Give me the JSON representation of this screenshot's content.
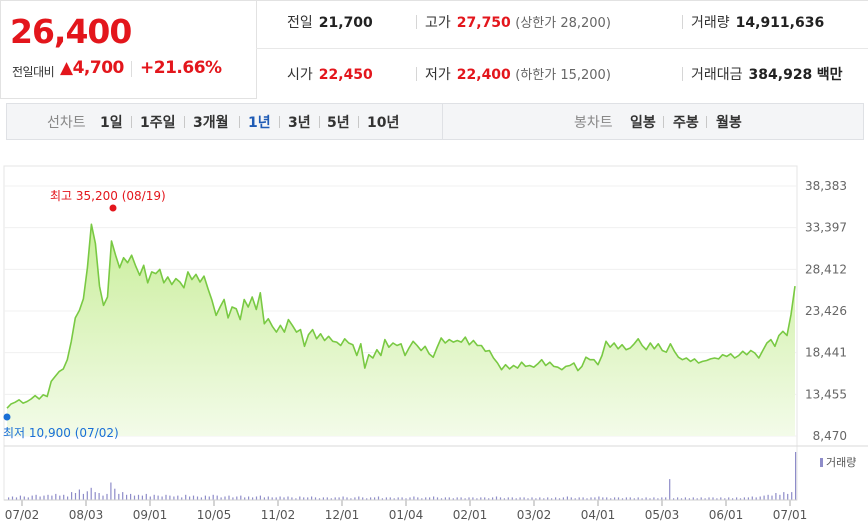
{
  "summary": {
    "current_price": "26,400",
    "change_label": "전일대비",
    "change_abs": "▲4,700",
    "change_pct": "+21.66%",
    "prev_close_label": "전일",
    "prev_close": "21,700",
    "high_label": "고가",
    "high": "27,750",
    "upper_limit": "(상한가 28,200)",
    "volume_label": "거래량",
    "volume": "14,911,636",
    "open_label": "시가",
    "open": "22,450",
    "low_label": "저가",
    "low": "22,400",
    "lower_limit": "(하한가 15,200)",
    "amount_label": "거래대금",
    "amount": "384,928",
    "amount_unit": "백만"
  },
  "toolbar": {
    "line_label": "선차트",
    "periods": [
      "1일",
      "1주일",
      "3개월",
      "1년",
      "3년",
      "5년",
      "10년"
    ],
    "active_period": "1년",
    "candle_label": "봉차트",
    "candles": [
      "일봉",
      "주봉",
      "월봉"
    ]
  },
  "colors": {
    "up": "#e3161c",
    "line": "#79c943",
    "fill_top": "#c9ee9a",
    "fill_bottom": "#f3fbe9",
    "low_dot": "#1a6fd6",
    "high_dot": "#e3161c",
    "active_tab": "#1f5bb5"
  },
  "chart_data": {
    "type": "area",
    "y_ticks": [
      "38,383",
      "33,397",
      "28,412",
      "23,426",
      "18,441",
      "13,455",
      "8,470"
    ],
    "ylim": [
      8470,
      38383
    ],
    "x_tick_labels": [
      "07/02",
      "08/03",
      "09/01",
      "10/05",
      "11/02",
      "12/01",
      "01/04",
      "02/01",
      "03/02",
      "04/01",
      "05/03",
      "06/01",
      "07/01"
    ],
    "high_annotation": "최고 35,200 (08/19)",
    "low_annotation": "최저 10,900 (07/02)",
    "volume_legend": "거래량",
    "price_series": [
      11800,
      12300,
      12500,
      12800,
      12400,
      12600,
      12900,
      13300,
      12900,
      13400,
      13200,
      15000,
      15600,
      16200,
      16500,
      17600,
      19800,
      22600,
      23500,
      24900,
      28600,
      33800,
      31500,
      26400,
      24100,
      25100,
      31800,
      30100,
      28600,
      29800,
      29200,
      30100,
      28800,
      27700,
      28900,
      26800,
      28100,
      27900,
      28400,
      26800,
      27500,
      26600,
      27300,
      26900,
      26200,
      28100,
      27200,
      27800,
      26900,
      27600,
      26100,
      24700,
      22900,
      23900,
      24800,
      22600,
      23900,
      23700,
      22400,
      24800,
      23900,
      25100,
      23600,
      25600,
      21900,
      22500,
      21600,
      20900,
      21700,
      20900,
      22400,
      21700,
      20900,
      21200,
      19200,
      20600,
      21200,
      20100,
      20700,
      19900,
      20400,
      19800,
      19700,
      19300,
      20100,
      19600,
      19400,
      18100,
      19500,
      16600,
      18200,
      17800,
      18800,
      18100,
      20000,
      19100,
      19600,
      19300,
      19500,
      18100,
      19000,
      19800,
      19300,
      18700,
      19200,
      18300,
      17900,
      19100,
      20200,
      19600,
      20000,
      19700,
      19900,
      19700,
      20300,
      19400,
      19900,
      19300,
      19300,
      18600,
      18700,
      17800,
      17200,
      16400,
      17000,
      16500,
      16900,
      16600,
      17300,
      16800,
      16900,
      16700,
      17100,
      17600,
      16900,
      17300,
      16800,
      16700,
      16400,
      16800,
      16900,
      17200,
      16300,
      16800,
      17900,
      17600,
      17600,
      17000,
      18100,
      19800,
      19100,
      19600,
      18900,
      19400,
      18800,
      19000,
      19500,
      20100,
      19300,
      18800,
      19600,
      18900,
      19500,
      18700,
      18500,
      19500,
      18600,
      17900,
      17600,
      17800,
      17400,
      17700,
      17200,
      17400,
      17500,
      17700,
      17800,
      17700,
      18200,
      18000,
      18300,
      17800,
      18100,
      18600,
      18200,
      18700,
      18400,
      17800,
      18700,
      19600,
      20000,
      19200,
      20500,
      21000,
      20500,
      23000,
      26400
    ],
    "volume_series": [
      3,
      4,
      3,
      5,
      4,
      3,
      5,
      6,
      4,
      5,
      6,
      5,
      7,
      5,
      6,
      4,
      9,
      8,
      12,
      7,
      10,
      14,
      9,
      8,
      5,
      7,
      20,
      13,
      7,
      9,
      6,
      7,
      5,
      6,
      5,
      7,
      4,
      6,
      5,
      4,
      6,
      5,
      4,
      5,
      3,
      6,
      4,
      5,
      4,
      3,
      5,
      4,
      6,
      5,
      3,
      4,
      5,
      3,
      4,
      5,
      3,
      4,
      3,
      4,
      5,
      3,
      4,
      3,
      3,
      4,
      3,
      4,
      3,
      2,
      4,
      3,
      3,
      4,
      3,
      2,
      3,
      3,
      2,
      3,
      3,
      4,
      3,
      2,
      3,
      4,
      3,
      2,
      3,
      3,
      4,
      2,
      3,
      3,
      2,
      3,
      3,
      2,
      3,
      4,
      3,
      2,
      3,
      3,
      4,
      3,
      2,
      3,
      3,
      2,
      3,
      3,
      2,
      3,
      3,
      2,
      3,
      3,
      2,
      3,
      4,
      3,
      2,
      3,
      3,
      2,
      3,
      3,
      2,
      3,
      2,
      3,
      2,
      3,
      2,
      3,
      2,
      3,
      4,
      3,
      2,
      3,
      3,
      2,
      3,
      3,
      4,
      3,
      3,
      2,
      3,
      3,
      2,
      3,
      3,
      2,
      3,
      2,
      3,
      2,
      3,
      2,
      3,
      3,
      24,
      2,
      3,
      2,
      3,
      2,
      3,
      2,
      3,
      2,
      3,
      3,
      2,
      3,
      2,
      3,
      2,
      3,
      2,
      3,
      3,
      4,
      3,
      4,
      5,
      6,
      5,
      8,
      6,
      9,
      7,
      9,
      55
    ]
  }
}
